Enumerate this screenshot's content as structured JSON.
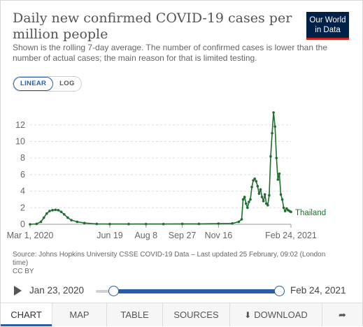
{
  "header": {
    "title": "Daily new confirmed COVID-19 cases per million people",
    "subtitle": "Shown is the rolling 7-day average. The number of confirmed cases is lower than the number of actual cases; the main reason for that is limited testing.",
    "logo_line1": "Our World",
    "logo_line2": "in Data"
  },
  "scale_toggle": {
    "linear": "LINEAR",
    "log": "LOG",
    "selected": "LINEAR"
  },
  "chart_data": {
    "type": "line",
    "title": "",
    "xlabel": "",
    "ylabel": "",
    "ylim": [
      0,
      13.5
    ],
    "x_range": [
      "2020-03-01",
      "2021-02-24"
    ],
    "x_ticks": [
      "Mar 1, 2020",
      "Jun 19",
      "Aug 8",
      "Sep 27",
      "Nov 16",
      "Feb 24, 2021"
    ],
    "y_ticks": [
      "0",
      "2",
      "4",
      "6",
      "8",
      "10",
      "12"
    ],
    "grid": true,
    "legend": "end-of-line label",
    "colors": {
      "line": "#1f6e2f",
      "grid": "#dddddd",
      "axis": "#999999"
    },
    "series": [
      {
        "name": "Thailand",
        "x": [
          "2020-03-01",
          "2020-03-10",
          "2020-03-16",
          "2020-03-20",
          "2020-03-24",
          "2020-03-28",
          "2020-04-01",
          "2020-04-05",
          "2020-04-09",
          "2020-04-13",
          "2020-04-17",
          "2020-04-22",
          "2020-04-27",
          "2020-05-05",
          "2020-05-15",
          "2020-06-01",
          "2020-06-19",
          "2020-07-15",
          "2020-08-08",
          "2020-09-01",
          "2020-09-27",
          "2020-10-20",
          "2020-11-16",
          "2020-12-05",
          "2020-12-14",
          "2020-12-18",
          "2020-12-20",
          "2020-12-22",
          "2020-12-24",
          "2020-12-26",
          "2020-12-28",
          "2020-12-30",
          "2021-01-01",
          "2021-01-03",
          "2021-01-05",
          "2021-01-07",
          "2021-01-09",
          "2021-01-11",
          "2021-01-13",
          "2021-01-15",
          "2021-01-17",
          "2021-01-19",
          "2021-01-21",
          "2021-01-23",
          "2021-01-25",
          "2021-01-27",
          "2021-01-29",
          "2021-01-31",
          "2021-02-02",
          "2021-02-04",
          "2021-02-06",
          "2021-02-08",
          "2021-02-10",
          "2021-02-12",
          "2021-02-14",
          "2021-02-16",
          "2021-02-18",
          "2021-02-20",
          "2021-02-22",
          "2021-02-24"
        ],
        "values": [
          0.0,
          0.05,
          0.3,
          0.8,
          1.3,
          1.6,
          1.7,
          1.75,
          1.7,
          1.5,
          1.2,
          0.8,
          0.5,
          0.3,
          0.15,
          0.05,
          0.03,
          0.03,
          0.03,
          0.03,
          0.05,
          0.05,
          0.08,
          0.1,
          0.3,
          0.6,
          3.0,
          3.3,
          2.5,
          2.0,
          2.7,
          3.0,
          4.5,
          5.3,
          5.5,
          5.2,
          4.6,
          3.7,
          4.2,
          3.3,
          2.8,
          3.6,
          2.5,
          2.3,
          3.5,
          8.2,
          11.0,
          13.5,
          11.8,
          8.0,
          5.4,
          6.1,
          3.6,
          3.0,
          2.0,
          1.6,
          1.9,
          1.7,
          1.6,
          1.5
        ]
      }
    ]
  },
  "source": "Source: Johns Hopkins University CSSE COVID-19 Data – Last updated 25 February, 09:02 (London time)",
  "license": "CC BY",
  "timeline": {
    "start_label": "Jan 23, 2020",
    "end_label": "Feb 24, 2021",
    "range_start": "2020-01-23",
    "range_end": "2021-02-24"
  },
  "tabs": [
    {
      "label": "CHART",
      "active": true
    },
    {
      "label": "MAP",
      "active": false
    },
    {
      "label": "TABLE",
      "active": false
    },
    {
      "label": "SOURCES",
      "active": false
    },
    {
      "label": "DOWNLOAD",
      "active": false,
      "icon": "download-icon"
    },
    {
      "label": "",
      "active": false,
      "icon": "share-icon"
    }
  ]
}
